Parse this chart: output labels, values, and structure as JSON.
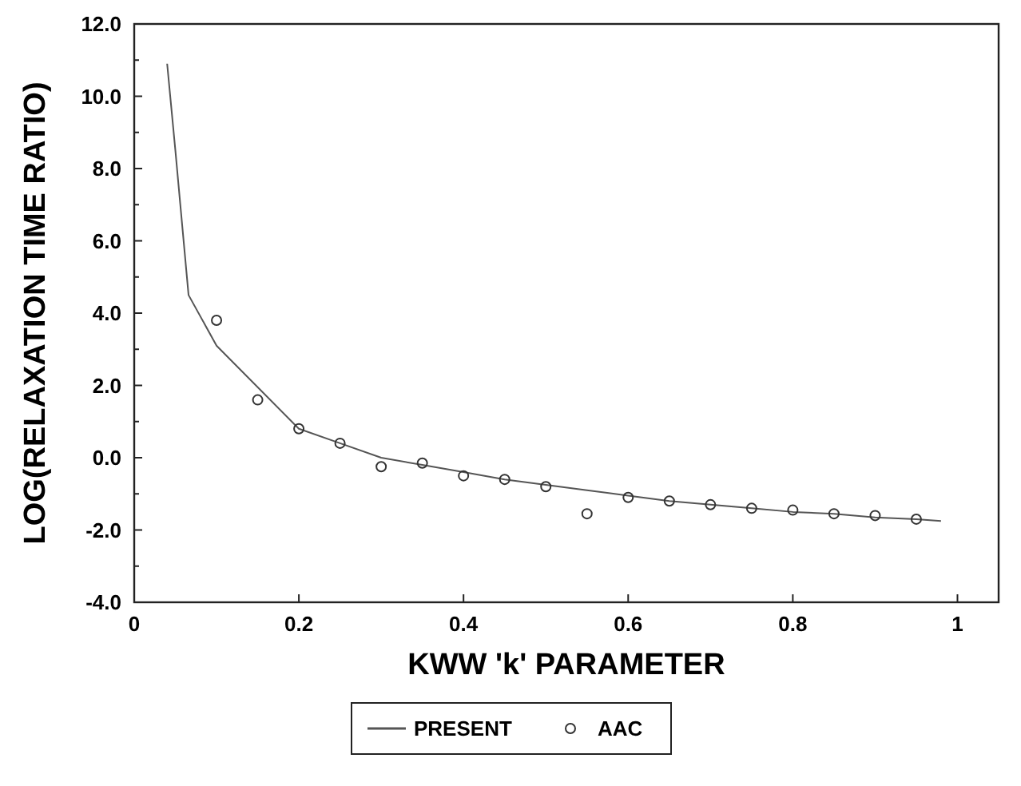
{
  "chart_data": {
    "type": "line",
    "xlabel": "KWW 'k' PARAMETER",
    "ylabel": "LOG(RELAXATION TIME RATIO)",
    "xlim": [
      0,
      1.05
    ],
    "ylim": [
      -4,
      12
    ],
    "xticks": [
      0,
      0.2,
      0.4,
      0.6,
      0.8,
      1
    ],
    "yticks": [
      {
        "value": -4,
        "label": "-4.0"
      },
      {
        "value": -2,
        "label": "-2.0"
      },
      {
        "value": 0,
        "label": "0.0"
      },
      {
        "value": 2,
        "label": "2.0"
      },
      {
        "value": 4,
        "label": "4.0"
      },
      {
        "value": 6,
        "label": "6.0"
      },
      {
        "value": 8,
        "label": "8.0"
      },
      {
        "value": 10,
        "label": "10.0"
      },
      {
        "value": 12,
        "label": "12.0"
      }
    ],
    "legend": "bottom",
    "grid": false,
    "series": [
      {
        "name": "PRESENT",
        "color": "#555555",
        "marker": "none",
        "x": [
          0.04,
          0.05,
          0.066,
          0.1,
          0.2,
          0.25,
          0.3,
          0.35,
          0.4,
          0.45,
          0.5,
          0.55,
          0.6,
          0.65,
          0.7,
          0.75,
          0.8,
          0.85,
          0.9,
          0.95,
          0.98
        ],
        "values": [
          10.9,
          8.5,
          4.5,
          3.1,
          0.8,
          0.4,
          0.0,
          -0.2,
          -0.4,
          -0.6,
          -0.75,
          -0.9,
          -1.05,
          -1.2,
          -1.3,
          -1.4,
          -1.5,
          -1.55,
          -1.65,
          -1.7,
          -1.75
        ]
      },
      {
        "name": "AAC",
        "type": "scatter",
        "color": "#333333",
        "marker": "circle",
        "x": [
          0.1,
          0.15,
          0.2,
          0.25,
          0.3,
          0.35,
          0.4,
          0.45,
          0.5,
          0.55,
          0.6,
          0.65,
          0.7,
          0.75,
          0.8,
          0.85,
          0.9,
          0.95
        ],
        "values": [
          3.8,
          1.6,
          0.8,
          0.4,
          -0.25,
          -0.15,
          -0.5,
          -0.6,
          -0.8,
          -1.55,
          -1.1,
          -1.2,
          -1.3,
          -1.4,
          -1.45,
          -1.55,
          -1.6,
          -1.7
        ]
      }
    ]
  }
}
